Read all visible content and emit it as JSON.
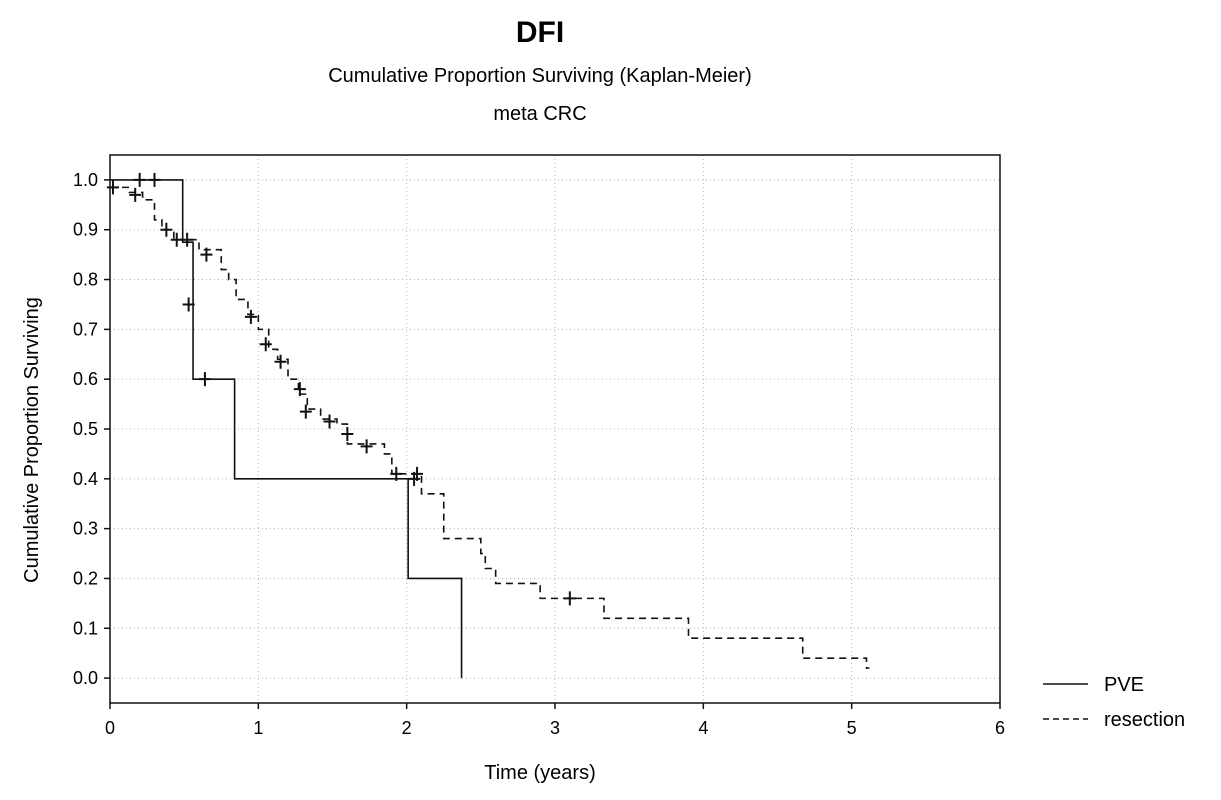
{
  "chart_data": {
    "type": "line",
    "subtype": "kaplan-meier-step",
    "title": "DFI",
    "subtitle": "Cumulative Proportion Surviving (Kaplan-Meier)",
    "subtitle2": "meta CRC",
    "xlabel": "Time (years)",
    "ylabel": "Cumulative Proportion Surviving",
    "xlim": [
      0,
      6
    ],
    "ylim": [
      -0.05,
      1.05
    ],
    "xticks": [
      "0",
      "1",
      "2",
      "3",
      "4",
      "5",
      "6"
    ],
    "yticks": [
      "1.0",
      "0.9",
      "0.8",
      "0.7",
      "0.6",
      "0.5",
      "0.4",
      "0.3",
      "0.2",
      "0.1",
      "0.0"
    ],
    "grid": true,
    "legend_position": "right-bottom, outside plot",
    "series": [
      {
        "name": "PVE",
        "line_style": "solid",
        "steps": [
          [
            0.0,
            1.0
          ],
          [
            0.49,
            0.875
          ],
          [
            0.56,
            0.75
          ],
          [
            0.56,
            0.6
          ],
          [
            0.84,
            0.4
          ],
          [
            2.01,
            0.2
          ],
          [
            2.37,
            0.0
          ]
        ],
        "end_x": 2.37,
        "censored": [
          [
            0.2,
            1.0
          ],
          [
            0.3,
            1.0
          ],
          [
            0.53,
            0.75
          ],
          [
            0.64,
            0.6
          ],
          [
            2.05,
            0.4
          ]
        ]
      },
      {
        "name": "resection",
        "line_style": "dashed",
        "steps": [
          [
            0.0,
            0.985
          ],
          [
            0.13,
            0.975
          ],
          [
            0.22,
            0.96
          ],
          [
            0.3,
            0.92
          ],
          [
            0.35,
            0.9
          ],
          [
            0.43,
            0.88
          ],
          [
            0.6,
            0.86
          ],
          [
            0.75,
            0.82
          ],
          [
            0.8,
            0.8
          ],
          [
            0.85,
            0.76
          ],
          [
            0.93,
            0.73
          ],
          [
            1.0,
            0.7
          ],
          [
            1.07,
            0.66
          ],
          [
            1.13,
            0.64
          ],
          [
            1.2,
            0.6
          ],
          [
            1.27,
            0.57
          ],
          [
            1.33,
            0.54
          ],
          [
            1.42,
            0.52
          ],
          [
            1.53,
            0.51
          ],
          [
            1.6,
            0.47
          ],
          [
            1.85,
            0.45
          ],
          [
            1.9,
            0.41
          ],
          [
            2.1,
            0.37
          ],
          [
            2.25,
            0.28
          ],
          [
            2.5,
            0.25
          ],
          [
            2.53,
            0.22
          ],
          [
            2.6,
            0.19
          ],
          [
            2.9,
            0.16
          ],
          [
            3.33,
            0.12
          ],
          [
            3.9,
            0.08
          ],
          [
            4.67,
            0.04
          ],
          [
            5.1,
            0.02
          ]
        ],
        "end_x": 5.12,
        "censored": [
          [
            0.02,
            0.985
          ],
          [
            0.17,
            0.97
          ],
          [
            0.38,
            0.9
          ],
          [
            0.45,
            0.88
          ],
          [
            0.52,
            0.88
          ],
          [
            0.65,
            0.85
          ],
          [
            0.95,
            0.725
          ],
          [
            1.05,
            0.67
          ],
          [
            1.15,
            0.635
          ],
          [
            1.28,
            0.58
          ],
          [
            1.32,
            0.535
          ],
          [
            1.48,
            0.515
          ],
          [
            1.6,
            0.49
          ],
          [
            1.73,
            0.465
          ],
          [
            1.93,
            0.41
          ],
          [
            2.07,
            0.41
          ],
          [
            3.1,
            0.16
          ]
        ]
      }
    ]
  }
}
